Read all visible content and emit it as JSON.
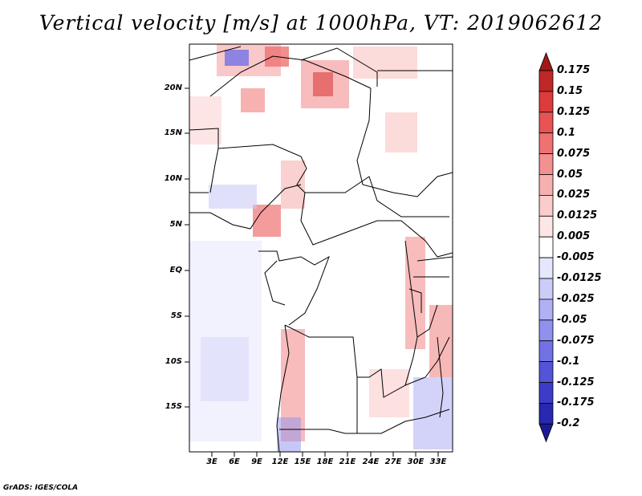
{
  "title": "Vertical velocity [m/s] at 1000hPa, VT: 2019062612",
  "credit": "GrADS: IGES/COLA",
  "map": {
    "lat_ticks": [
      "20N",
      "15N",
      "10N",
      "5N",
      "EQ",
      "5S",
      "10S",
      "15S"
    ],
    "lon_ticks": [
      "3E",
      "6E",
      "9E",
      "12E",
      "15E",
      "18E",
      "21E",
      "24E",
      "27E",
      "30E",
      "33E"
    ]
  },
  "colorbar": {
    "labels": [
      "0.175",
      "0.15",
      "0.125",
      "0.1",
      "0.075",
      "0.05",
      "0.025",
      "0.0125",
      "0.005",
      "-0.005",
      "-0.0125",
      "-0.025",
      "-0.05",
      "-0.075",
      "-0.1",
      "-0.125",
      "-0.175",
      "-0.2"
    ],
    "colors": [
      "#a01818",
      "#c02828",
      "#dc3c3c",
      "#e85454",
      "#ef7272",
      "#f39090",
      "#f7b0b0",
      "#fbcccc",
      "#fde6e6",
      "#ffffff",
      "#e6e6fd",
      "#ccccf9",
      "#b0b0f5",
      "#9090ef",
      "#7272e6",
      "#5454d8",
      "#3c3cc8",
      "#2828b0",
      "#1a1a96"
    ]
  }
}
